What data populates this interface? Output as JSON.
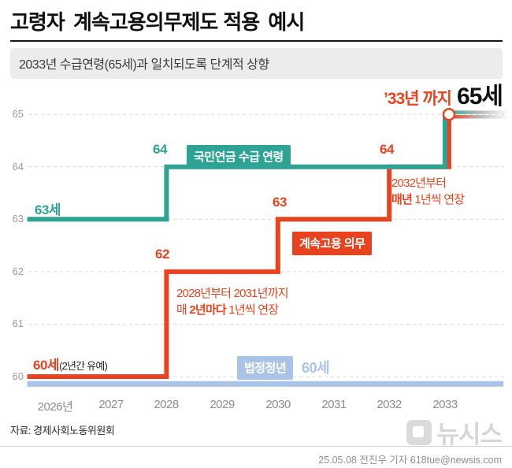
{
  "header": {
    "title_strong": "고령자 계속고용의무제도",
    "title_rest": "적용 예시",
    "subtitle": "2033년 수급연령(65세)과 일치되도록 단계적 상향"
  },
  "callout": {
    "prefix": "’33년 까지",
    "value": "65세"
  },
  "labels": {
    "pension_series": "국민연금 수급 연령",
    "pension_start": "63세",
    "pension_step_64": "64",
    "employment_series": "계속고용 의무",
    "employment_start_strong": "60세",
    "employment_start_note": "(2년간 유예)",
    "step_62": "62",
    "step_63": "63",
    "step_64": "64",
    "retirement_series": "법정정년",
    "retirement_value": "60세"
  },
  "notes": {
    "early": {
      "line1": "2028년부터 2031년까지",
      "line2_pre": "매 ",
      "line2_strong": "2년마다",
      "line2_post": " 1년씩 연장"
    },
    "late": {
      "line1": "2032년부터",
      "line2_strong": "매년",
      "line2_post": " 1년씩 연장"
    }
  },
  "axis": {
    "y": [
      "65",
      "64",
      "63",
      "62",
      "61",
      "60"
    ],
    "x": [
      "2026년",
      "2027",
      "2028",
      "2029",
      "2030",
      "2031",
      "2032",
      "2033"
    ]
  },
  "footer": {
    "source": "자료: 경제사회노동위원회",
    "watermark": "뉴시스",
    "credit": "25.05.08 전진우 기자 618tue@newsis.com"
  },
  "colors": {
    "pension": "#2ea393",
    "employment": "#e8431f",
    "retirement": "#a9c4e6",
    "grid": "#d9d9d9"
  },
  "chart_data": {
    "type": "line",
    "step": true,
    "title": "고령자 계속고용의무제도 적용 예시",
    "x_ticks": [
      2026,
      2027,
      2028,
      2029,
      2030,
      2031,
      2032,
      2033
    ],
    "y_range": [
      60,
      65
    ],
    "grid": true,
    "series": [
      {
        "name": "국민연금 수급 연령",
        "color": "#2ea393",
        "points": [
          [
            2025.5,
            63
          ],
          [
            2028,
            63
          ],
          [
            2028,
            64
          ],
          [
            2033,
            64
          ],
          [
            2033,
            65
          ]
        ]
      },
      {
        "name": "계속고용 의무",
        "color": "#e8431f",
        "points": [
          [
            2025.5,
            60
          ],
          [
            2028,
            60
          ],
          [
            2028,
            62
          ],
          [
            2030,
            62
          ],
          [
            2030,
            63
          ],
          [
            2032,
            63
          ],
          [
            2032,
            64
          ],
          [
            2033,
            64
          ],
          [
            2033,
            65
          ]
        ]
      },
      {
        "name": "법정정년 60세",
        "color": "#a9c4e6",
        "points": [
          [
            2025.5,
            59.86
          ],
          [
            2034.05,
            59.86
          ]
        ]
      }
    ]
  }
}
